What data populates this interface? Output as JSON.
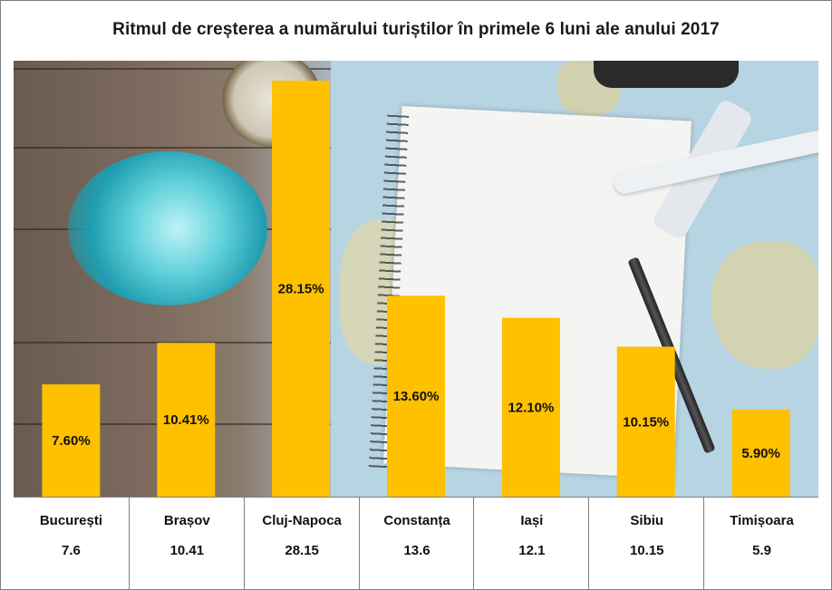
{
  "chart_data": {
    "type": "bar",
    "title": "Ritmul de creșterea a numărului turiștilor în primele 6 luni ale anului 2017",
    "categories": [
      "București",
      "Brașov",
      "Cluj-Napoca",
      "Constanța",
      "Iași",
      "Sibiu",
      "Timișoara"
    ],
    "values": [
      7.6,
      10.41,
      28.15,
      13.6,
      12.1,
      10.15,
      5.9
    ],
    "data_labels": [
      "7.60%",
      "10.41%",
      "28.15%",
      "13.60%",
      "12.10%",
      "10.15%",
      "5.90%"
    ],
    "table_values": [
      "7.6",
      "10.41",
      "28.15",
      "13.6",
      "12.1",
      "10.15",
      "5.9"
    ],
    "ylim": [
      0,
      29.5
    ],
    "bar_color": "#ffc000",
    "legend": "none",
    "grid": false
  }
}
